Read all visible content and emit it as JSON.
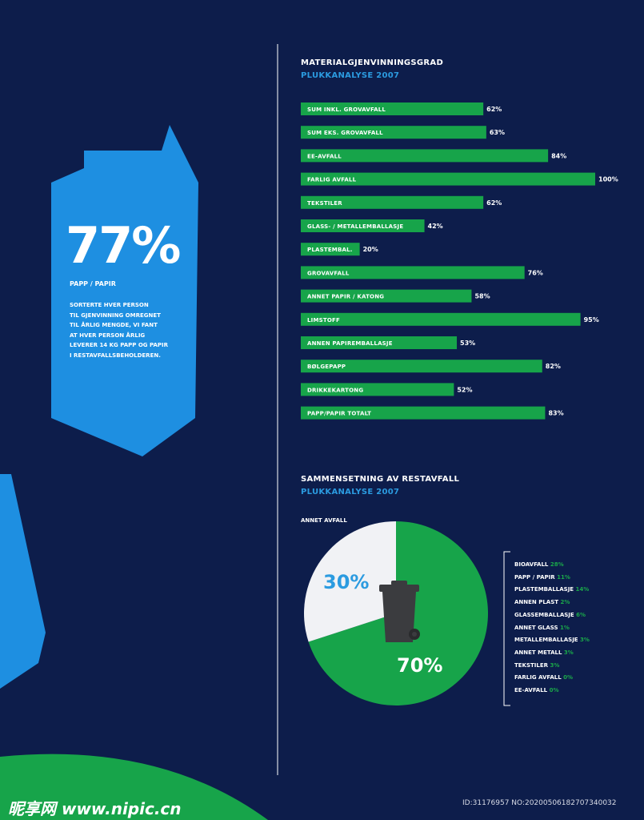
{
  "colors": {
    "background": "#0d1d4b",
    "bar": "#17a44a",
    "carton": "#1e8fe1",
    "pie_main": "#17a44a",
    "pie_other": "#f1f2f5",
    "accent_blue": "#2b9be0",
    "bin": "#3b3c3f"
  },
  "left_panel": {
    "big_percent": "77%",
    "category": "PAPP / PAPIR",
    "description": "SORTERTE HVER PERSON\nTIL GJENVINNING OMREGNET\nTIL ÅRLIG MENGDE, VI FANT\nAT HVER PERSON ÅRLIG\nLEVERER 14 KG PAPP OG PAPIR\nI RESTAVFALLSBEHOLDEREN."
  },
  "chart_data": [
    {
      "type": "bar",
      "title": "MATERIALGJENVINNINGSGRAD",
      "subtitle": "PLUKKANALYSE 2007",
      "categories": [
        "SUM INKL. GROVAVFALL",
        "SUM EKS. GROVAVFALL",
        "EE-AVFALL",
        "FARLIG AVFALL",
        "TEKSTILER",
        "GLASS- / METALLEMBALLASJE",
        "PLASTEMBAL.",
        "GROVAVFALL",
        "ANNET PAPIR / KATONG",
        "LIMSTOFF",
        "ANNEN PAPIREMBALLASJE",
        "BØLGEPAPP",
        "DRIKKEKARTONG",
        "PAPP/PAPIR TOTALT"
      ],
      "values": [
        62,
        63,
        84,
        100,
        62,
        42,
        20,
        76,
        58,
        95,
        53,
        82,
        52,
        83
      ],
      "value_labels": [
        "62%",
        "63%",
        "84%",
        "100%",
        "62%",
        "42%",
        "20%",
        "76%",
        "58%",
        "95%",
        "53%",
        "82%",
        "52%",
        "83%"
      ],
      "ylim": [
        0,
        100
      ]
    },
    {
      "type": "pie",
      "title": "SAMMENSETNING AV RESTAVFALL",
      "subtitle": "PLUKKANALYSE 2007",
      "annotation": "ANNET AVFALL",
      "slices": [
        {
          "label": "",
          "value": 70,
          "text": "70%"
        },
        {
          "label": "ANNET AVFALL",
          "value": 30,
          "text": "30%"
        }
      ],
      "breakdown": [
        {
          "label": "BIOAVFALL",
          "value": "28%"
        },
        {
          "label": "PAPP / PAPIR",
          "value": "11%"
        },
        {
          "label": "PLASTEMBALLASJE",
          "value": "14%"
        },
        {
          "label": "ANNEN PLAST",
          "value": "2%"
        },
        {
          "label": "GLASSEMBALLASJE",
          "value": "6%"
        },
        {
          "label": "ANNET GLASS",
          "value": "1%"
        },
        {
          "label": "METALLEMBALLASJE",
          "value": "3%"
        },
        {
          "label": "ANNET METALL",
          "value": "3%"
        },
        {
          "label": "TEKSTILER",
          "value": "3%"
        },
        {
          "label": "FARLIG AVFALL",
          "value": "0%"
        },
        {
          "label": "EE-AVFALL",
          "value": "0%"
        }
      ]
    }
  ],
  "footer": {
    "watermark": "昵享网 www.nipic.cn",
    "id_text": "ID:31176957 NO:20200506182707340032"
  }
}
